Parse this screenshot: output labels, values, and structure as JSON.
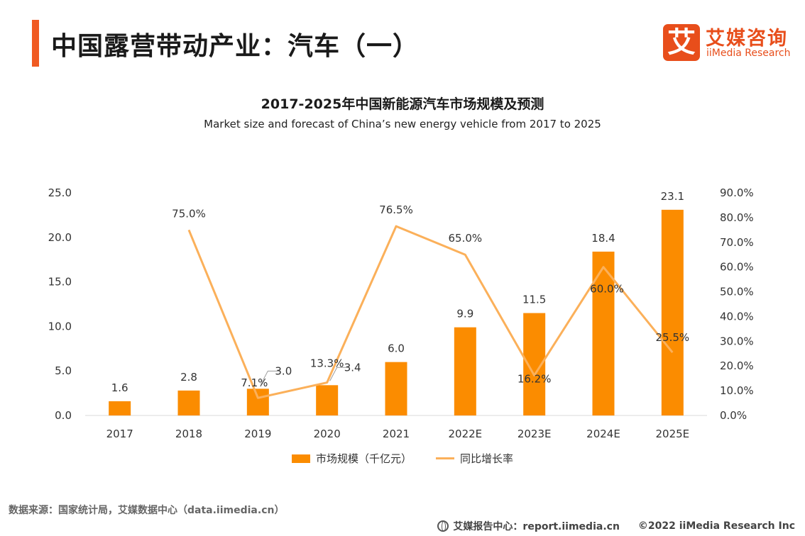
{
  "header": {
    "title": "中国露营带动产业：汽车（一）",
    "logo_mark": "艾",
    "logo_cn": "艾媒咨询",
    "logo_en": "iiMedia Research"
  },
  "colors": {
    "accent": "#f05a22",
    "bar": "#fb8c00",
    "line": "#fbb05a"
  },
  "chart_data": {
    "type": "bar",
    "title": "2017-2025年中国新能源汽车市场规模及预测",
    "subtitle": "Market size and forecast of China’s new energy vehicle from 2017 to 2025",
    "categories": [
      "2017",
      "2018",
      "2019",
      "2020",
      "2021",
      "2022E",
      "2023E",
      "2024E",
      "2025E"
    ],
    "y_left": {
      "min": 0,
      "max": 25,
      "ticks": [
        "0.0",
        "5.0",
        "10.0",
        "15.0",
        "20.0",
        "25.0"
      ]
    },
    "y_right": {
      "min": 0,
      "max": 90,
      "ticks": [
        "0.0%",
        "10.0%",
        "20.0%",
        "30.0%",
        "40.0%",
        "50.0%",
        "60.0%",
        "70.0%",
        "80.0%",
        "90.0%"
      ]
    },
    "grid": false,
    "legend_position": "bottom",
    "series": [
      {
        "name": "市场规模（千亿元）",
        "type": "bar",
        "axis": "left",
        "values": [
          1.6,
          2.8,
          3.0,
          3.4,
          6.0,
          9.9,
          11.5,
          18.4,
          23.1
        ],
        "labels": [
          "1.6",
          "2.8",
          "3.0",
          "3.4",
          "6.0",
          "9.9",
          "11.5",
          "18.4",
          "23.1"
        ]
      },
      {
        "name": "同比增长率",
        "type": "line",
        "axis": "right",
        "values": [
          null,
          75.0,
          7.1,
          13.3,
          76.5,
          65.0,
          16.2,
          60.0,
          25.5
        ],
        "labels": [
          "",
          "75.0%",
          "7.1%",
          "13.3%",
          "76.5%",
          "65.0%",
          "16.2%",
          "60.0%",
          "25.5%"
        ]
      }
    ]
  },
  "footer": {
    "source": "数据来源：国家统计局，艾媒数据中心（data.iimedia.cn）",
    "report_center": "艾媒报告中心：report.iimedia.cn",
    "copyright": "©2022  iiMedia Research  Inc"
  }
}
